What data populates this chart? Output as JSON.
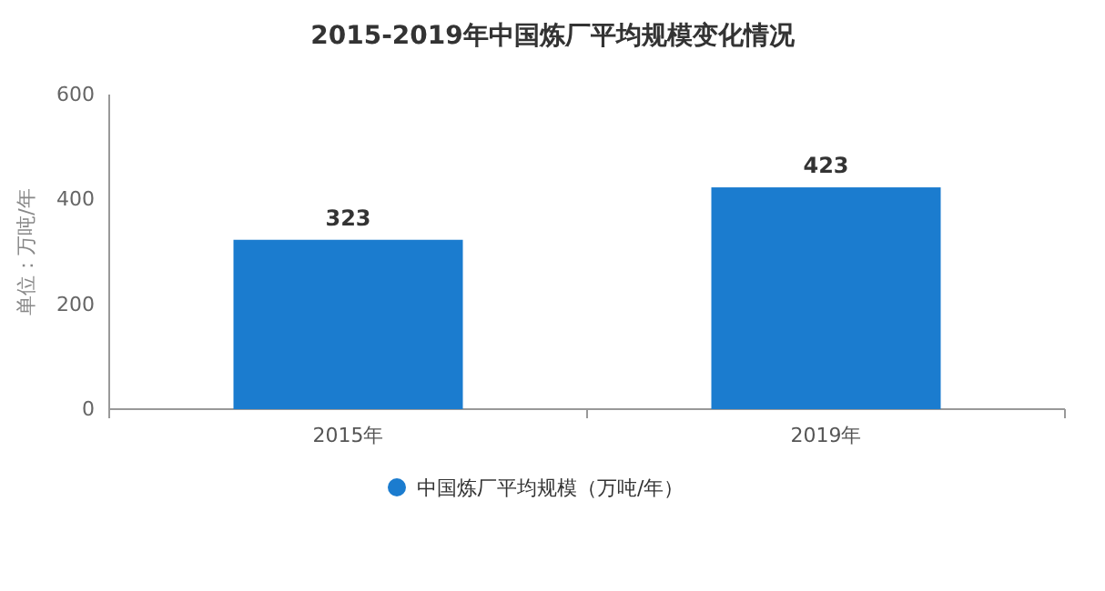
{
  "chart_data": {
    "type": "bar",
    "title": "2015-2019年中国炼厂平均规模变化情况",
    "ylabel": "单位：万吨/年",
    "categories": [
      "2015年",
      "2019年"
    ],
    "series": [
      {
        "name": "中国炼厂平均规模（万吨/年）",
        "color": "#1b7ccf",
        "values": [
          323,
          423
        ]
      }
    ],
    "ylim": [
      0,
      600
    ],
    "yticks": [
      0,
      200,
      400,
      600
    ],
    "data_labels": true,
    "legend": "bottom",
    "grid": false
  }
}
